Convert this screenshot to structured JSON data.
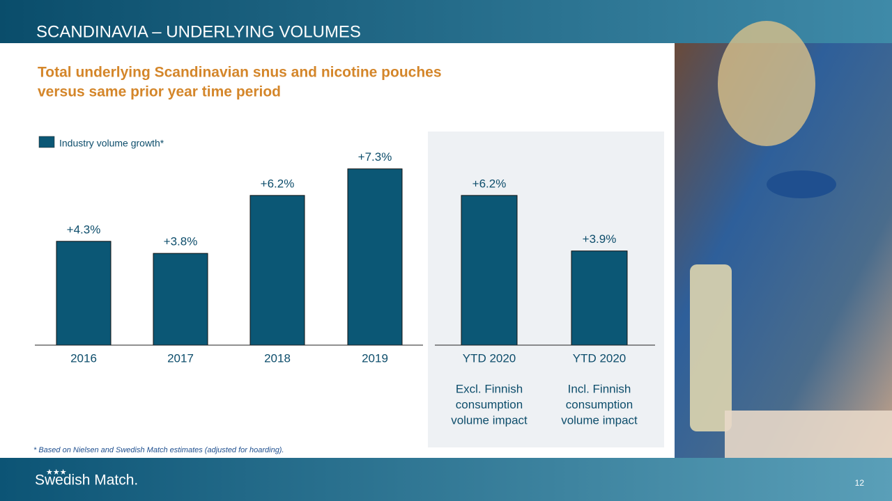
{
  "slide": {
    "title": "SCANDINAVIA – UNDERLYING VOLUMES",
    "subtitle": [
      "Total underlying Scandinavian snus and nicotine pouches",
      "versus same prior year time period"
    ],
    "footnote": "* Based on Nielsen and Swedish Match estimates (adjusted for hoarding).",
    "logo": "Swedish Match.",
    "page_number": "12"
  },
  "chart_data": [
    {
      "type": "bar",
      "categories": [
        "2016",
        "2017",
        "2018",
        "2019"
      ],
      "series": [
        {
          "name": "Industry volume growth*",
          "color": "#0b5775",
          "values": [
            4.3,
            3.8,
            6.2,
            7.3
          ],
          "value_labels": [
            "+4.3%",
            "+3.8%",
            "+6.2%",
            "+7.3%"
          ]
        }
      ]
    },
    {
      "type": "bar",
      "categories": [
        "YTD 2020",
        "YTD 2020"
      ],
      "category_notes": [
        [
          "Excl. Finnish",
          "consumption",
          "volume impact"
        ],
        [
          "Incl. Finnish",
          "consumption",
          "volume impact"
        ]
      ],
      "color": "#0b5775",
      "values": [
        6.2,
        3.9
      ],
      "value_labels": [
        "+6.2%",
        "+3.9%"
      ]
    }
  ]
}
